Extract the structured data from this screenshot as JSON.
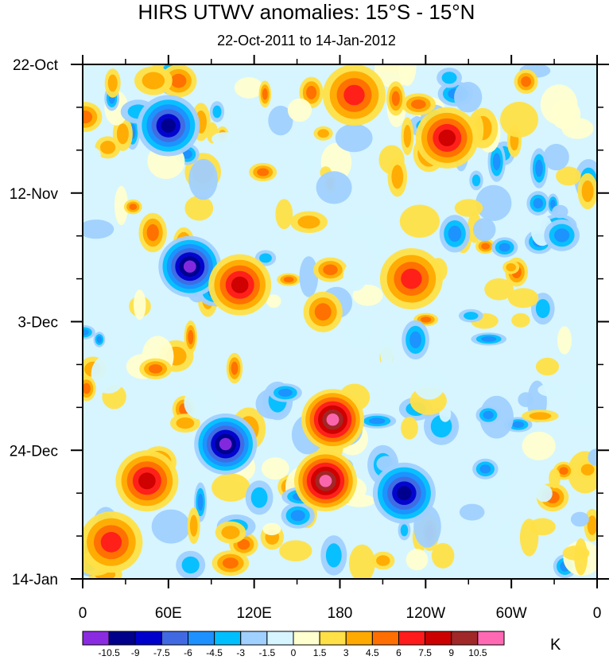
{
  "chart_data": {
    "type": "heatmap",
    "title": "HIRS UTWV anomalies: 15°S - 15°N",
    "subtitle": "22-Oct-2011 to 14-Jan-2012",
    "xlabel": "",
    "ylabel": "",
    "x_ticks": [
      "0",
      "60E",
      "120E",
      "180",
      "120W",
      "60W",
      "0"
    ],
    "x_range": [
      0,
      360
    ],
    "y_ticks": [
      "22-Oct",
      "12-Nov",
      "3-Dec",
      "24-Dec",
      "14-Jan"
    ],
    "y_range_days": [
      0,
      84
    ],
    "units": "K",
    "colorbar": {
      "levels": [
        "-10.5",
        "-9",
        "-7.5",
        "-6",
        "-4.5",
        "-3",
        "-1.5",
        "0",
        "1.5",
        "3",
        "4.5",
        "6",
        "7.5",
        "9",
        "10.5"
      ],
      "colors": [
        "#8a2be2",
        "#00008b",
        "#0000cd",
        "#4169e1",
        "#1e90ff",
        "#00bfff",
        "#a0d0ff",
        "#d6f5ff",
        "#ffffd0",
        "#ffe047",
        "#ffaa00",
        "#ff6e00",
        "#ff1b1b",
        "#cc0000",
        "#a02828",
        "#ff69b4"
      ]
    },
    "features": [
      {
        "lon": 20,
        "day": 78,
        "value": 6
      },
      {
        "lon": 45,
        "day": 68,
        "value": 7.5
      },
      {
        "lon": 60,
        "day": 10,
        "value": -9
      },
      {
        "lon": 75,
        "day": 33,
        "value": -10.5
      },
      {
        "lon": 100,
        "day": 62,
        "value": -10.5
      },
      {
        "lon": 110,
        "day": 36,
        "value": 7.5
      },
      {
        "lon": 170,
        "day": 68,
        "value": 10.5
      },
      {
        "lon": 175,
        "day": 58,
        "value": 10.5
      },
      {
        "lon": 190,
        "day": 5,
        "value": 6
      },
      {
        "lon": 225,
        "day": 70,
        "value": -9
      },
      {
        "lon": 255,
        "day": 12,
        "value": 7.5
      },
      {
        "lon": 230,
        "day": 35,
        "value": 6
      }
    ]
  }
}
